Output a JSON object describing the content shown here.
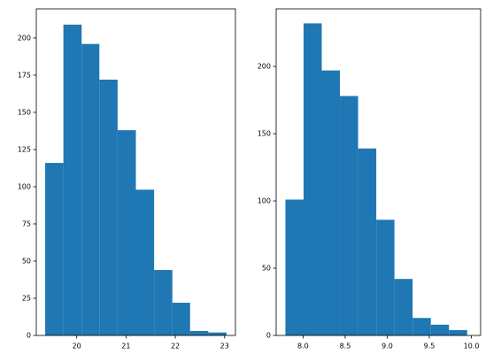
{
  "chart_data": [
    {
      "type": "histogram",
      "bins": [
        19.36,
        19.73,
        20.1,
        20.46,
        20.83,
        21.2,
        21.57,
        21.94,
        22.3,
        22.67,
        23.04
      ],
      "values": [
        116,
        209,
        196,
        172,
        138,
        98,
        44,
        22,
        3,
        2
      ],
      "color": "#1f77b4",
      "xlim": [
        19.18,
        23.22
      ],
      "xticks": [
        20,
        21,
        22,
        23
      ],
      "ylim": [
        0,
        219.6
      ],
      "yticks": [
        0,
        25,
        50,
        75,
        100,
        125,
        150,
        175,
        200
      ]
    },
    {
      "type": "histogram",
      "bins": [
        7.79,
        8.006,
        8.222,
        8.438,
        8.654,
        8.87,
        9.086,
        9.302,
        9.518,
        9.734,
        9.95
      ],
      "values": [
        101,
        232,
        197,
        178,
        139,
        86,
        42,
        13,
        8,
        4
      ],
      "color": "#1f77b4",
      "xlim": [
        7.68,
        10.11
      ],
      "xticks": [
        {
          "value": 8,
          "label": "8.0"
        },
        {
          "value": 8.5,
          "label": "8.5"
        },
        {
          "value": 9,
          "label": "9.0"
        },
        9.5,
        {
          "value": 10,
          "label": "10.0"
        }
      ],
      "ylim": [
        0,
        242.8
      ],
      "yticks": [
        0,
        50,
        100,
        150,
        200
      ]
    }
  ]
}
